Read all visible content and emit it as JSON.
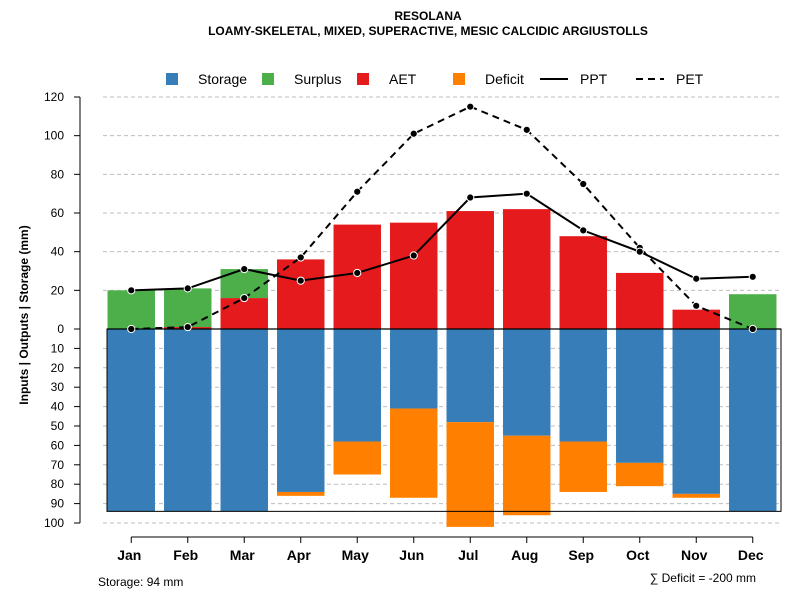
{
  "chart_data": {
    "type": "bar",
    "title": "RESOLANA",
    "subtitle": "LOAMY-SKELETAL, MIXED, SUPERACTIVE, MESIC CALCIDIC ARGIUSTOLLS",
    "ylabel": "Inputs | Outputs | Storage    (mm)",
    "categories": [
      "Jan",
      "Feb",
      "Mar",
      "Apr",
      "May",
      "Jun",
      "Jul",
      "Aug",
      "Sep",
      "Oct",
      "Nov",
      "Dec"
    ],
    "upper_ticks": [
      "120",
      "100",
      "80",
      "60",
      "40",
      "20",
      "0"
    ],
    "upper_tick_values": [
      120,
      100,
      80,
      60,
      40,
      20,
      0
    ],
    "lower_ticks": [
      "10",
      "20",
      "30",
      "40",
      "50",
      "60",
      "70",
      "80",
      "90",
      "100"
    ],
    "lower_tick_values": [
      10,
      20,
      30,
      40,
      50,
      60,
      70,
      80,
      90,
      100
    ],
    "upper_ylim": [
      0,
      120
    ],
    "lower_ylim": [
      0,
      100
    ],
    "series": [
      {
        "name": "Storage",
        "color": "#377EB8",
        "values": [
          94,
          94,
          94,
          84,
          58,
          41,
          48,
          55,
          58,
          69,
          85,
          94
        ]
      },
      {
        "name": "Surplus",
        "color": "#4DAF4A",
        "values": [
          20,
          20,
          15,
          0,
          0,
          0,
          0,
          0,
          0,
          0,
          0,
          18
        ]
      },
      {
        "name": "AET",
        "color": "#E41A1C",
        "values": [
          0,
          1,
          16,
          36,
          54,
          55,
          61,
          62,
          48,
          29,
          10,
          0
        ]
      },
      {
        "name": "Deficit",
        "color": "#FF7F00",
        "values": [
          0,
          0,
          0,
          2,
          17,
          46,
          54,
          41,
          26,
          12,
          2,
          0
        ]
      },
      {
        "name": "PPT",
        "color": "#000000",
        "style": "solid",
        "values": [
          20,
          21,
          31,
          25,
          29,
          38,
          68,
          70,
          51,
          40,
          26,
          27
        ]
      },
      {
        "name": "PET",
        "color": "#000000",
        "style": "dashed",
        "values": [
          0,
          1,
          16,
          37,
          71,
          101,
          115,
          103,
          75,
          42,
          12,
          0
        ]
      }
    ],
    "storage_note": "Storage: 94 mm",
    "deficit_note": "∑ Deficit = -200 mm",
    "grid": true,
    "legend_position": "top"
  }
}
